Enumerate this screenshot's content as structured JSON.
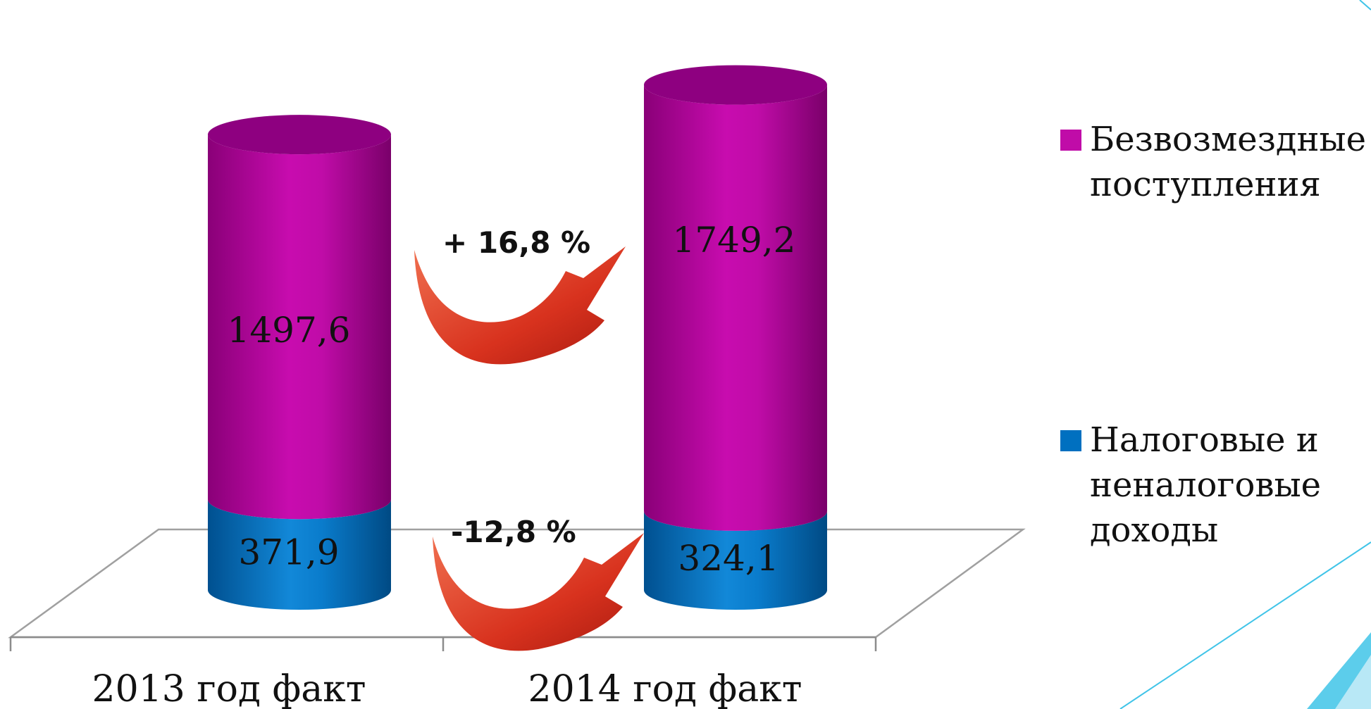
{
  "chart_data": {
    "type": "bar",
    "stacked": true,
    "style": "3d-cylinder",
    "categories": [
      "2013 год факт",
      "2014 год факт"
    ],
    "series": [
      {
        "name": "Налоговые и неналоговые доходы",
        "values": [
          371.9,
          324.1
        ],
        "labels": [
          "371,9",
          "324,1"
        ],
        "color": "#0070c0"
      },
      {
        "name": "Безвозмездные поступления",
        "values": [
          1497.6,
          1749.2
        ],
        "labels": [
          "1497,6",
          "1749,2"
        ],
        "color": "#c00ca8"
      }
    ],
    "legend": {
      "placement": "right",
      "items": [
        {
          "label": "Безвозмездные поступления",
          "color": "#c00ca8"
        },
        {
          "label": "Налоговые и неналоговые доходы",
          "color": "#0070c0"
        }
      ]
    },
    "annotations": [
      {
        "text": "+ 16,8 %",
        "series": "Безвозмездные поступления",
        "icon": "curved-arrow-up-icon"
      },
      {
        "text": "-12,8 %",
        "series": "Налоговые и неналоговые доходы",
        "icon": "curved-arrow-up-icon"
      }
    ],
    "ylim": [
      0,
      2200
    ],
    "grid": false
  },
  "decor": {
    "accent": "#40c4e8",
    "arrow_color": "#e03a2a"
  }
}
